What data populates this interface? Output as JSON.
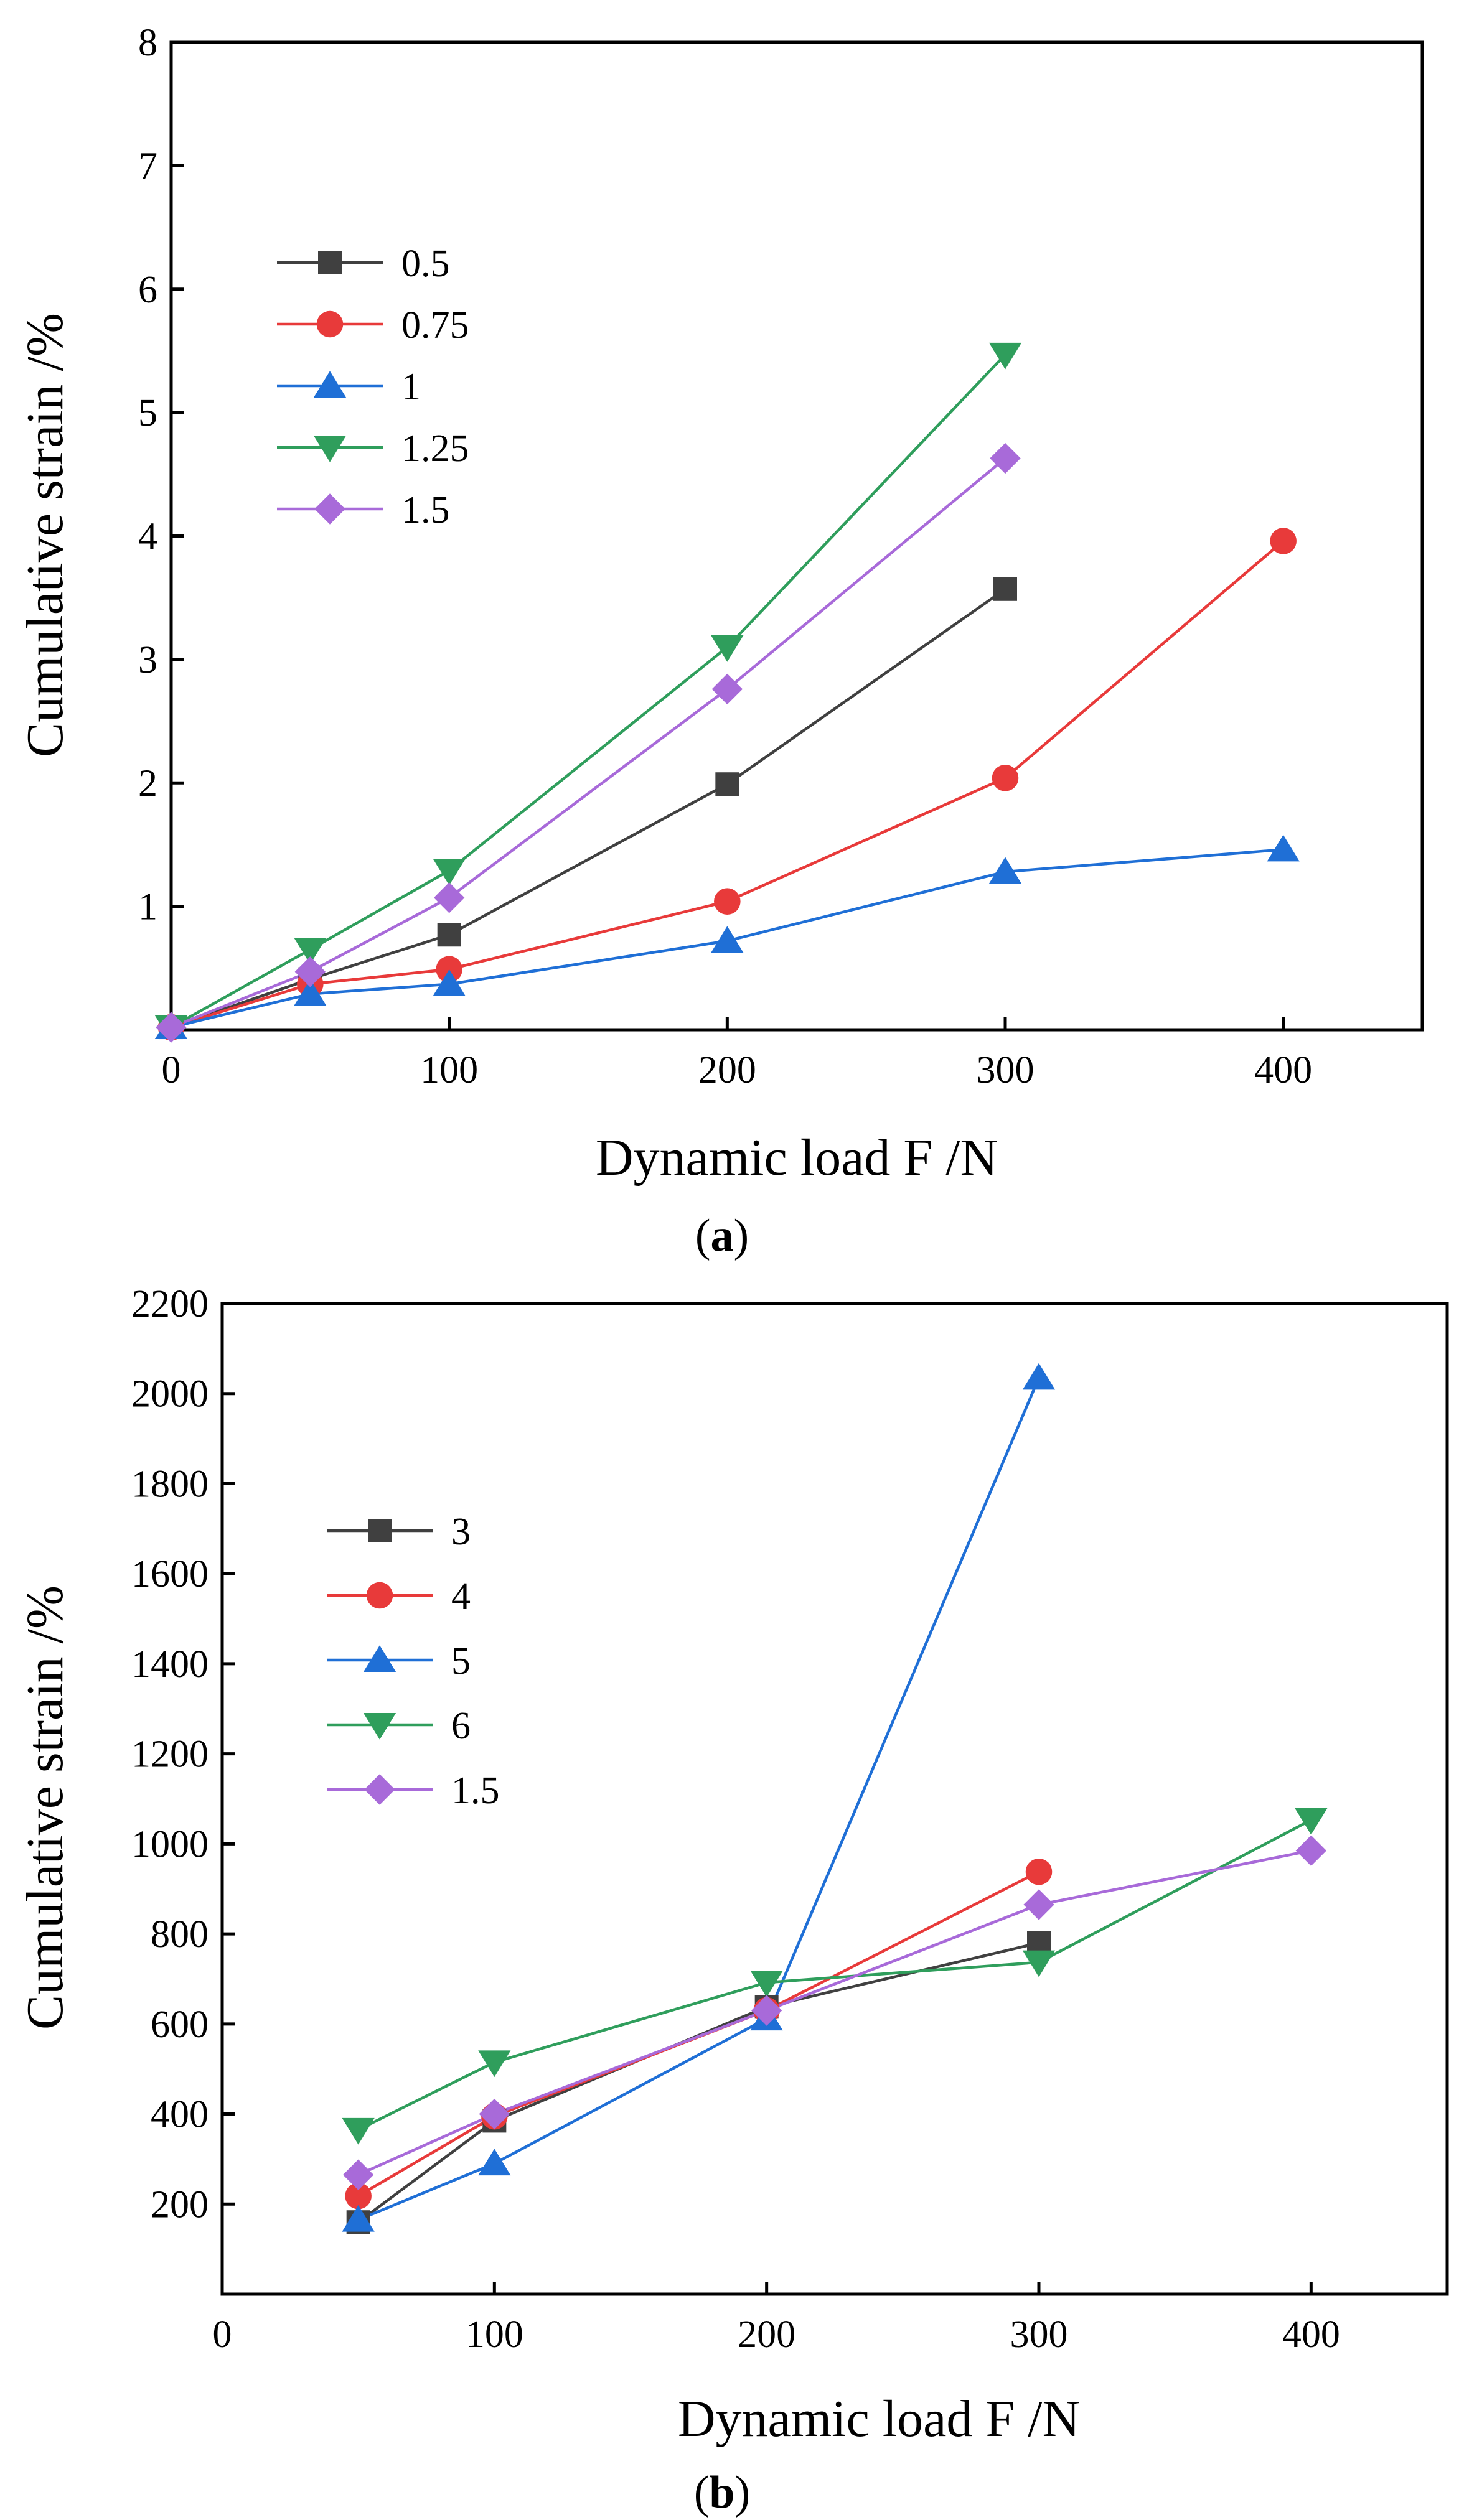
{
  "chart_data": [
    {
      "type": "line",
      "caption_letter": "a",
      "xlabel": "Dynamic load F /N",
      "ylabel": "Cumulative strain /%",
      "xlim": [
        0,
        450
      ],
      "ylim": [
        0,
        8
      ],
      "xticks": [
        0,
        100,
        200,
        300,
        400
      ],
      "yticks": [
        1,
        2,
        3,
        4,
        5,
        6,
        7,
        8
      ],
      "legend_position": "upper-left",
      "series": [
        {
          "name": "0.5",
          "color": "#404040",
          "marker": "square",
          "x": [
            0,
            50,
            100,
            200,
            300
          ],
          "y": [
            0.02,
            0.41,
            0.77,
            1.99,
            3.57
          ]
        },
        {
          "name": "0.75",
          "color": "#e83a3a",
          "marker": "circle",
          "x": [
            0,
            50,
            100,
            200,
            300,
            400
          ],
          "y": [
            0.02,
            0.37,
            0.49,
            1.04,
            2.04,
            3.96
          ]
        },
        {
          "name": "1",
          "color": "#1f6fd6",
          "marker": "triangle-up",
          "x": [
            0,
            50,
            100,
            200,
            300,
            400
          ],
          "y": [
            0.02,
            0.29,
            0.37,
            0.72,
            1.28,
            1.46
          ]
        },
        {
          "name": "1.25",
          "color": "#2f9e5c",
          "marker": "triangle-down",
          "x": [
            0,
            50,
            100,
            200,
            300
          ],
          "y": [
            0.02,
            0.65,
            1.29,
            3.1,
            5.47
          ]
        },
        {
          "name": "1.5",
          "color": "#a86ad9",
          "marker": "diamond",
          "x": [
            0,
            50,
            100,
            200,
            300
          ],
          "y": [
            0.02,
            0.47,
            1.07,
            2.76,
            4.63
          ]
        }
      ]
    },
    {
      "type": "line",
      "caption_letter": "b",
      "xlabel": "Dynamic load F /N",
      "ylabel": "Cumulative strain /%",
      "xlim": [
        0,
        450
      ],
      "ylim": [
        0,
        2200
      ],
      "xticks": [
        0,
        100,
        200,
        300,
        400
      ],
      "yticks": [
        200,
        400,
        600,
        800,
        1000,
        1200,
        1400,
        1600,
        1800,
        2000,
        2200
      ],
      "legend_position": "upper-left",
      "series": [
        {
          "name": "3",
          "color": "#404040",
          "marker": "square",
          "x": [
            50,
            100,
            200,
            300
          ],
          "y": [
            160,
            385,
            638,
            780
          ]
        },
        {
          "name": "4",
          "color": "#e83a3a",
          "marker": "circle",
          "x": [
            50,
            100,
            200,
            300
          ],
          "y": [
            218,
            395,
            630,
            938
          ]
        },
        {
          "name": "5",
          "color": "#1f6fd6",
          "marker": "triangle-up",
          "x": [
            50,
            100,
            200,
            300
          ],
          "y": [
            165,
            290,
            612,
            2035
          ]
        },
        {
          "name": "6",
          "color": "#2f9e5c",
          "marker": "triangle-down",
          "x": [
            50,
            100,
            200,
            300,
            400
          ],
          "y": [
            365,
            515,
            692,
            737,
            1053
          ]
        },
        {
          "name": "1.5",
          "color": "#a86ad9",
          "marker": "diamond",
          "x": [
            50,
            100,
            200,
            300,
            400
          ],
          "y": [
            265,
            400,
            630,
            865,
            985
          ]
        }
      ]
    }
  ]
}
